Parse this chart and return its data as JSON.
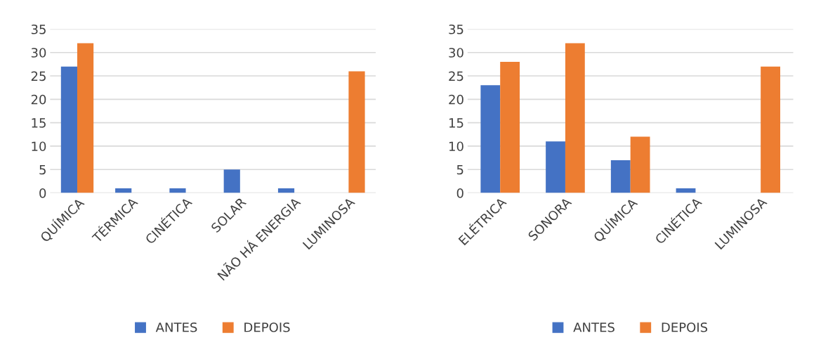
{
  "chart_data": [
    {
      "type": "bar",
      "categories": [
        "QUÍMICA",
        "TÉRMICA",
        "CINÉTICA",
        "SOLAR",
        "NÃO HÁ ENERGIA",
        "LUMINOSA"
      ],
      "series": [
        {
          "name": "ANTES",
          "color": "#4472c4",
          "values": [
            27,
            1,
            1,
            5,
            1,
            0
          ]
        },
        {
          "name": "DEPOIS",
          "color": "#ed7d31",
          "values": [
            32,
            0,
            0,
            0,
            0,
            26
          ]
        }
      ],
      "ylim": [
        0,
        35
      ],
      "yticks": [
        0,
        5,
        10,
        15,
        20,
        25,
        30,
        35
      ],
      "grid": "y",
      "legend": "bottom"
    },
    {
      "type": "bar",
      "categories": [
        "ELÉTRICA",
        "SONORA",
        "QUÍMICA",
        "CINÉTICA",
        "LUMINOSA"
      ],
      "series": [
        {
          "name": "ANTES",
          "color": "#4472c4",
          "values": [
            23,
            11,
            7,
            1,
            0
          ]
        },
        {
          "name": "DEPOIS",
          "color": "#ed7d31",
          "values": [
            28,
            32,
            12,
            0,
            27
          ]
        }
      ],
      "ylim": [
        0,
        35
      ],
      "yticks": [
        0,
        5,
        10,
        15,
        20,
        25,
        30,
        35
      ],
      "grid": "y",
      "legend": "bottom"
    }
  ]
}
